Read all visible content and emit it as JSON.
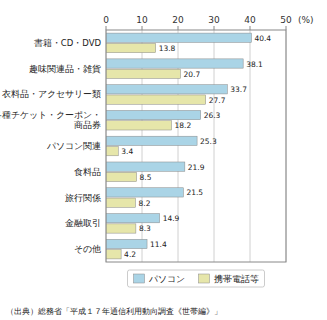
{
  "chart_data": {
    "type": "bar",
    "orientation": "horizontal",
    "categories": [
      "書籍・CD・DVD",
      "趣味関連品・雑貨",
      "衣料品・アクセサリー類",
      "各種チケット・クーポン・\n商品券",
      "パソコン関連",
      "食料品",
      "旅行関係",
      "金融取引",
      "その他"
    ],
    "series": [
      {
        "name": "パソコン",
        "color": "#aad4e6",
        "values": [
          40.4,
          38.1,
          33.7,
          26.3,
          25.3,
          21.9,
          21.5,
          14.9,
          11.4
        ]
      },
      {
        "name": "携帯電話等",
        "color": "#e6e6aa",
        "values": [
          13.8,
          20.7,
          27.7,
          18.2,
          3.4,
          8.5,
          8.2,
          8.3,
          4.2
        ]
      }
    ],
    "xlabel": "(%)",
    "xlim": [
      0,
      50
    ],
    "xticks": [
      0,
      10,
      20,
      30,
      40,
      50
    ],
    "grid": true,
    "data_labels": true,
    "legend": "bottom",
    "source": "（出典）総務省「平成１７年通信利用動向調査《世帯編》」"
  }
}
